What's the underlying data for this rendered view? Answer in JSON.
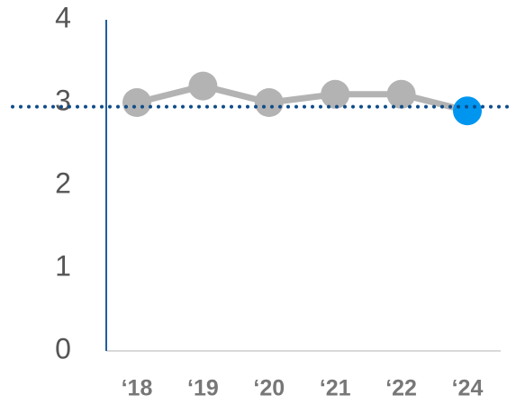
{
  "chart_data": {
    "type": "line",
    "categories": [
      "‘18",
      "‘19",
      "‘20",
      "‘21",
      "‘22",
      "‘24"
    ],
    "series": [
      {
        "values": [
          3.0,
          3.2,
          3.0,
          3.1,
          3.1,
          2.9
        ],
        "color": "#b3b3b3",
        "point_colors": [
          "#b3b3b3",
          "#b3b3b3",
          "#b3b3b3",
          "#b3b3b3",
          "#b3b3b3",
          "#0096f0"
        ]
      }
    ],
    "reference_line": {
      "value": 2.95,
      "color": "#0f4c8a"
    },
    "ylim": [
      0,
      4
    ],
    "yticks": [
      0,
      1,
      2,
      3,
      4
    ]
  }
}
